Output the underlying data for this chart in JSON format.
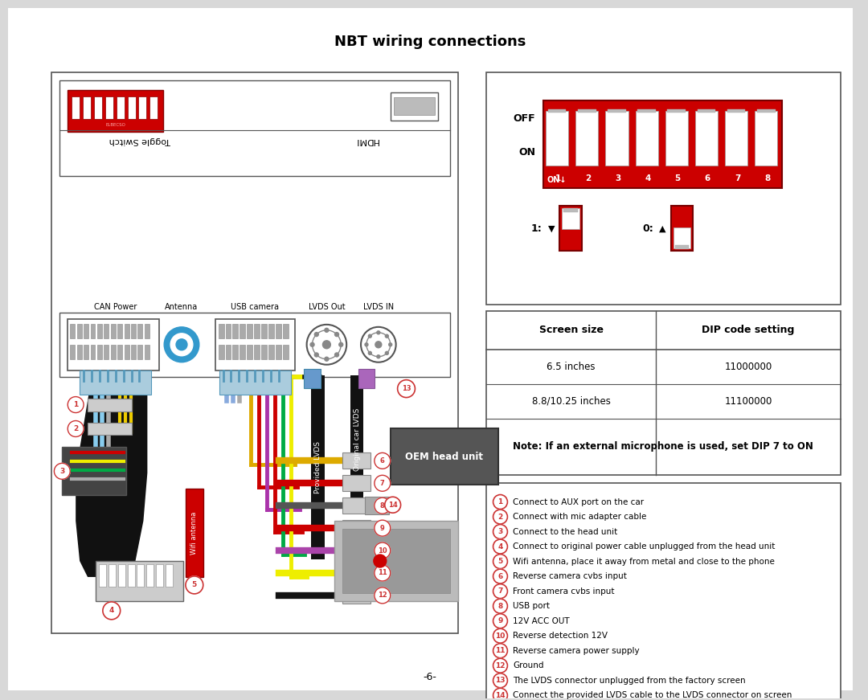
{
  "title": "NBT wiring connections",
  "bg_color": "#d8d8d8",
  "page_bg": "#ffffff",
  "title_fontsize": 12,
  "page_number": "-6-",
  "table_header": [
    "Screen size",
    "DIP code setting"
  ],
  "table_rows": [
    [
      "6.5 inches",
      "11000000"
    ],
    [
      "8.8/10.25 inches",
      "11100000"
    ]
  ],
  "table_note": "Note: If an external microphone is used, set DIP 7 to ON",
  "legend_items": [
    [
      "1",
      "Connect to AUX port on the car"
    ],
    [
      "2",
      "Connect with mic adapter cable"
    ],
    [
      "3",
      "Connect to the head unit"
    ],
    [
      "4",
      "Connect to original power cable unplugged from the head unit"
    ],
    [
      "5",
      "Wifi antenna, place it away from metal and close to the phone"
    ],
    [
      "6",
      "Reverse camera cvbs input"
    ],
    [
      "7",
      "Front camera cvbs input"
    ],
    [
      "8",
      "USB port"
    ],
    [
      "9",
      "12V ACC OUT"
    ],
    [
      "10",
      "Reverse detection 12V"
    ],
    [
      "11",
      "Reverse camera power supply"
    ],
    [
      "12",
      "Ground"
    ],
    [
      "13",
      "The LVDS connector unplugged from the factory screen"
    ],
    [
      "14",
      "Connect the provided LVDS cable to the LVDS connector on screen"
    ]
  ]
}
